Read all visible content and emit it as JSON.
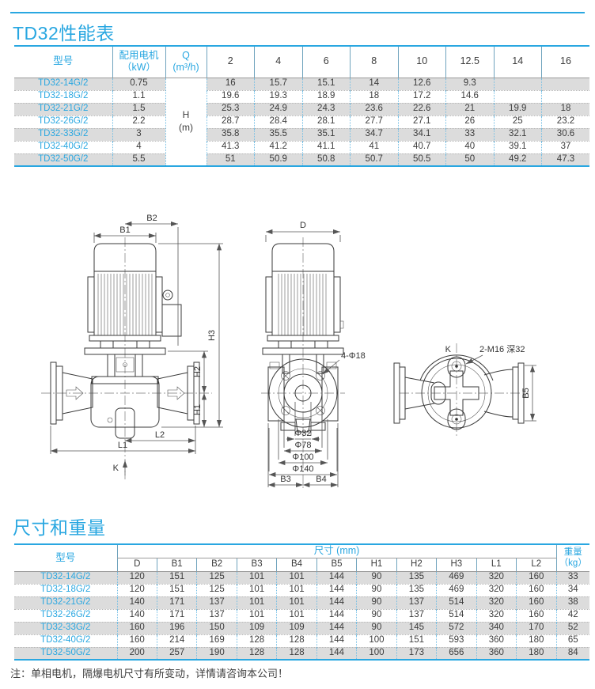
{
  "page": {
    "title_performance": "TD32性能表",
    "title_dimensions": "尺寸和重量",
    "note": "注：单相电机，隔爆电机尺寸有所变动，详情请咨询本公司！",
    "accent_color": "#29a7e1",
    "shaded_row_color": "#dcdcdc"
  },
  "performance_table": {
    "headers": {
      "model": "型号",
      "motor": "配用电机\n（kW）",
      "q": "Q\n(m³/h)",
      "h_label": "H\n(m)",
      "flow_points": [
        "2",
        "4",
        "6",
        "8",
        "10",
        "12.5",
        "14",
        "16"
      ]
    },
    "rows": [
      {
        "model": "TD32-14G/2",
        "power": "0.75",
        "values": [
          "16",
          "15.7",
          "15.1",
          "14",
          "12.6",
          "9.3",
          "",
          ""
        ]
      },
      {
        "model": "TD32-18G/2",
        "power": "1.1",
        "values": [
          "19.6",
          "19.3",
          "18.9",
          "18",
          "17.2",
          "14.6",
          "",
          ""
        ]
      },
      {
        "model": "TD32-21G/2",
        "power": "1.5",
        "values": [
          "25.3",
          "24.9",
          "24.3",
          "23.6",
          "22.6",
          "21",
          "19.9",
          "18"
        ]
      },
      {
        "model": "TD32-26G/2",
        "power": "2.2",
        "values": [
          "28.7",
          "28.4",
          "28.1",
          "27.7",
          "27.1",
          "26",
          "25",
          "23.2"
        ]
      },
      {
        "model": "TD32-33G/2",
        "power": "3",
        "values": [
          "35.8",
          "35.5",
          "35.1",
          "34.7",
          "34.1",
          "33",
          "32.1",
          "30.6"
        ]
      },
      {
        "model": "TD32-40G/2",
        "power": "4",
        "values": [
          "41.3",
          "41.2",
          "41.1",
          "41",
          "40.7",
          "40",
          "39.1",
          "37"
        ]
      },
      {
        "model": "TD32-50G/2",
        "power": "5.5",
        "values": [
          "51",
          "50.9",
          "50.8",
          "50.7",
          "50.5",
          "50",
          "49.2",
          "47.3"
        ]
      }
    ]
  },
  "dimensions_table": {
    "headers": {
      "model": "型号",
      "size_group": "尺寸 (mm)",
      "weight": "重量\n（kg）",
      "columns": [
        "D",
        "B1",
        "B2",
        "B3",
        "B4",
        "B5",
        "H1",
        "H2",
        "H3",
        "L1",
        "L2"
      ]
    },
    "rows": [
      {
        "model": "TD32-14G/2",
        "dims": [
          "120",
          "151",
          "125",
          "101",
          "101",
          "144",
          "90",
          "135",
          "469",
          "320",
          "160"
        ],
        "weight": "33"
      },
      {
        "model": "TD32-18G/2",
        "dims": [
          "120",
          "151",
          "125",
          "101",
          "101",
          "144",
          "90",
          "135",
          "469",
          "320",
          "160"
        ],
        "weight": "34"
      },
      {
        "model": "TD32-21G/2",
        "dims": [
          "140",
          "171",
          "137",
          "101",
          "101",
          "144",
          "90",
          "137",
          "514",
          "320",
          "160"
        ],
        "weight": "38"
      },
      {
        "model": "TD32-26G/2",
        "dims": [
          "140",
          "171",
          "137",
          "101",
          "101",
          "144",
          "90",
          "137",
          "514",
          "320",
          "160"
        ],
        "weight": "42"
      },
      {
        "model": "TD32-33G/2",
        "dims": [
          "160",
          "196",
          "150",
          "109",
          "109",
          "144",
          "90",
          "145",
          "572",
          "340",
          "170"
        ],
        "weight": "52"
      },
      {
        "model": "TD32-40G/2",
        "dims": [
          "160",
          "214",
          "169",
          "128",
          "128",
          "144",
          "100",
          "151",
          "593",
          "360",
          "180"
        ],
        "weight": "65"
      },
      {
        "model": "TD32-50G/2",
        "dims": [
          "200",
          "257",
          "190",
          "128",
          "128",
          "144",
          "100",
          "173",
          "656",
          "360",
          "180"
        ],
        "weight": "84"
      }
    ]
  },
  "drawings": {
    "front_view": {
      "b1": "B1",
      "b2": "B2",
      "h1": "H1",
      "h2": "H2",
      "h3": "H3",
      "l1": "L1",
      "l2": "L2",
      "k": "K"
    },
    "side_view": {
      "d": "D",
      "bolt_callout": "4-Φ18",
      "phi32": "Φ32",
      "phi78": "Φ78",
      "phi100": "Φ100",
      "phi140": "Φ140",
      "b3": "B3",
      "b4": "B4"
    },
    "top_view": {
      "k": "K",
      "thread_callout": "2-M16 深32",
      "b5": "B5"
    }
  }
}
